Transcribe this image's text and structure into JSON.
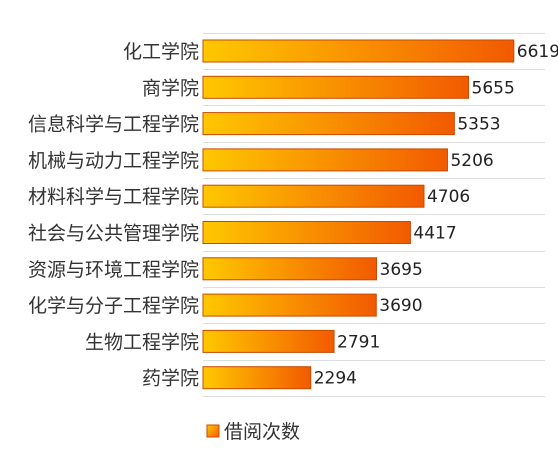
{
  "chart_data": {
    "type": "bar",
    "orientation": "horizontal",
    "categories": [
      "化工学院",
      "商学院",
      "信息科学与工程学院",
      "机械与动力工程学院",
      "材料科学与工程学院",
      "社会与公共管理学院",
      "资源与环境工程学院",
      "化学与分子工程学院",
      "生物工程学院",
      "药学院"
    ],
    "series": [
      {
        "name": "借阅次数",
        "values": [
          6619,
          5655,
          5353,
          5206,
          4706,
          4417,
          3695,
          3690,
          2791,
          2294
        ]
      }
    ],
    "title": "",
    "xlabel": "",
    "ylabel": "",
    "xlim": [
      0,
      6900
    ],
    "grid": true,
    "legend": "bottom",
    "colors": {
      "bar_start": "#FFC800",
      "bar_end": "#F25A00",
      "bar_edge": "#C84A00",
      "grid": "#DDDDDD"
    }
  }
}
